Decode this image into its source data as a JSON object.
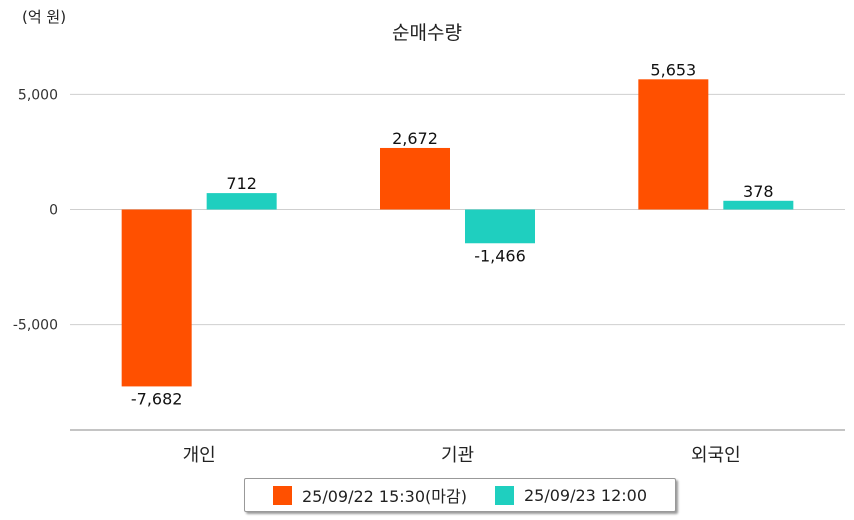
{
  "chart_data": {
    "type": "bar",
    "title": "순매수량",
    "unit_label": "(억 원)",
    "categories": [
      "개인",
      "기관",
      "외국인"
    ],
    "series": [
      {
        "name": "25/09/22 15:30(마감)",
        "color": "#ff5000",
        "values": [
          -7682,
          2672,
          5653
        ],
        "labels": [
          "-7,682",
          "2,672",
          "5,653"
        ]
      },
      {
        "name": "25/09/23 12:00",
        "color": "#1fcfbf",
        "values": [
          712,
          -1466,
          378
        ],
        "labels": [
          "712",
          "-1,466",
          "378"
        ]
      }
    ],
    "yticks": [
      5000,
      0,
      -5000
    ],
    "ytick_labels": [
      "5,000",
      "0",
      "-5,000"
    ],
    "ylim": [
      -9600,
      7300
    ],
    "grid": true,
    "legend_position": "bottom"
  }
}
